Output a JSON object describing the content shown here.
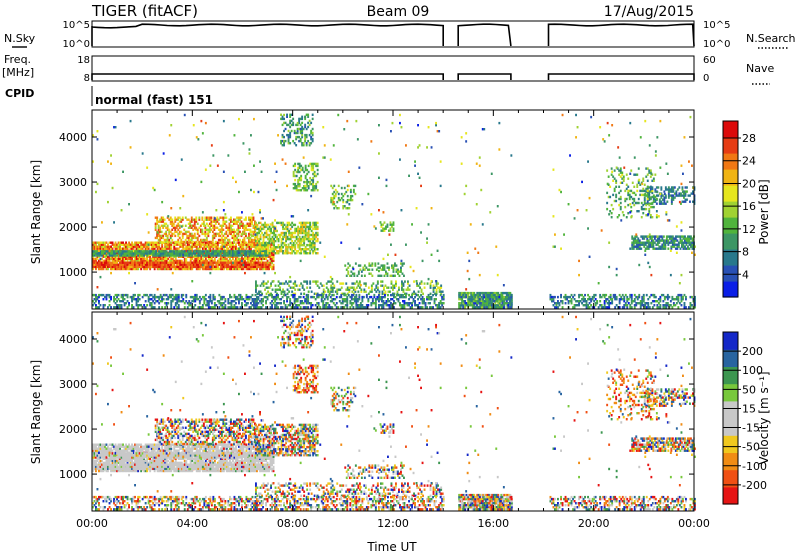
{
  "header": {
    "station": "TIGER (fitACF)",
    "beam": "Beam 09",
    "date": "17/Aug/2015"
  },
  "top_panels": {
    "nsky": {
      "label": "N.Sky",
      "tick_hi": "10^5",
      "tick_lo": "10^0"
    },
    "nsearch": {
      "label": "N.Search",
      "tick_hi": "10^5",
      "tick_lo": "10^0"
    },
    "freq": {
      "label_line1": "Freq.",
      "label_line2": "[MHz]",
      "tick_hi": "18",
      "tick_lo": "8"
    },
    "nave": {
      "label": "Nave",
      "tick_hi": "60",
      "tick_lo": "0"
    },
    "cpid": {
      "label": "CPID",
      "value": "normal (fast) 151"
    }
  },
  "colors": {
    "power_scale": [
      "#0a1ee6",
      "#2850b4",
      "#28788c",
      "#3c9664",
      "#50b43c",
      "#a0d232",
      "#e6e61e",
      "#f0b414",
      "#f07814",
      "#e63c14",
      "#dc0a0a"
    ],
    "velocity_scale": [
      "#e61414",
      "#f05014",
      "#f08c14",
      "#f0c81e",
      "#c8c8c8",
      "#c8c8c8",
      "#78c83c",
      "#3c9650",
      "#2864a0",
      "#1428c8"
    ]
  },
  "chart_data": [
    {
      "type": "heatmap",
      "name": "power",
      "ylabel": "Slant Range [km]",
      "yticks": [
        "1000",
        "2000",
        "3000",
        "4000"
      ],
      "ylim": [
        180,
        4600
      ],
      "xlim": [
        "00:00",
        "24:00"
      ],
      "colorbar_label": "Power [dB]",
      "colorbar_ticks": [
        "4",
        "8",
        "12",
        "16",
        "20",
        "24",
        "28"
      ],
      "colorbar_range": [
        0,
        31
      ]
    },
    {
      "type": "heatmap",
      "name": "velocity",
      "ylabel": "Slant Range [km]",
      "yticks": [
        "1000",
        "2000",
        "3000",
        "4000"
      ],
      "ylim": [
        180,
        4600
      ],
      "xlabel": "Time UT",
      "xticks": [
        "00:00",
        "04:00",
        "08:00",
        "12:00",
        "16:00",
        "20:00",
        "00:00"
      ],
      "colorbar_label": "Velocity [m s⁻¹]",
      "colorbar_ticks": [
        "200",
        "100",
        "50",
        "15",
        "-15",
        "-50",
        "-100",
        "-200"
      ]
    }
  ]
}
